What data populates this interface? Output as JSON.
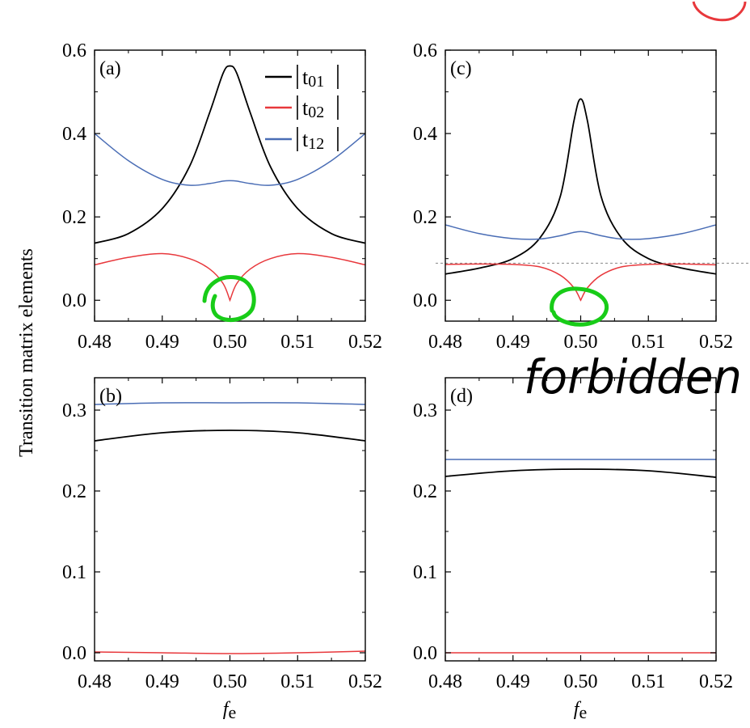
{
  "figure": {
    "ylabel": "Transition matrix elements",
    "xlabel_main": "f",
    "xlabel_sub": "e"
  },
  "legend": [
    {
      "label": "|t01|",
      "main": "t",
      "sub": "01",
      "color": "#000000"
    },
    {
      "label": "|t02|",
      "main": "t",
      "sub": "02",
      "color": "#e8383c"
    },
    {
      "label": "|t12|",
      "main": "t",
      "sub": "12",
      "color": "#4a6db5"
    }
  ],
  "annotations": {
    "handwritten_text": "forbidden",
    "pen_color": "#18cc18",
    "red_circle_color": "#e8383c"
  },
  "chart_data": [
    {
      "type": "line",
      "panel_label": "(a)",
      "xlim": [
        0.48,
        0.52
      ],
      "ylim": [
        -0.05,
        0.6
      ],
      "xticks": [
        "0.48",
        "0.49",
        "0.50",
        "0.51",
        "0.52"
      ],
      "yticks": [
        "0.0",
        "0.2",
        "0.4",
        "0.6"
      ],
      "x": [
        0.48,
        0.485,
        0.49,
        0.494,
        0.497,
        0.499,
        0.5,
        0.501,
        0.503,
        0.506,
        0.51,
        0.515,
        0.52
      ],
      "series": [
        {
          "name": "|t01|",
          "values": [
            0.137,
            0.16,
            0.22,
            0.32,
            0.45,
            0.545,
            0.562,
            0.545,
            0.45,
            0.32,
            0.22,
            0.16,
            0.137
          ]
        },
        {
          "name": "|t02|",
          "values": [
            0.085,
            0.103,
            0.112,
            0.1,
            0.075,
            0.04,
            0.0,
            0.04,
            0.075,
            0.1,
            0.112,
            0.103,
            0.085
          ]
        },
        {
          "name": "|t12|",
          "values": [
            0.4,
            0.335,
            0.29,
            0.276,
            0.28,
            0.286,
            0.287,
            0.286,
            0.28,
            0.276,
            0.29,
            0.335,
            0.4
          ]
        }
      ]
    },
    {
      "type": "line",
      "panel_label": "(b)",
      "xlim": [
        0.48,
        0.52
      ],
      "ylim": [
        -0.01,
        0.34
      ],
      "xticks": [
        "0.48",
        "0.49",
        "0.50",
        "0.51",
        "0.52"
      ],
      "yticks": [
        "0.0",
        "0.1",
        "0.2",
        "0.3"
      ],
      "x": [
        0.48,
        0.49,
        0.5,
        0.51,
        0.52
      ],
      "series": [
        {
          "name": "|t01|",
          "values": [
            0.262,
            0.272,
            0.275,
            0.272,
            0.262
          ]
        },
        {
          "name": "|t02|",
          "values": [
            0.001,
            0.0,
            -0.001,
            0.0,
            0.002
          ]
        },
        {
          "name": "|t12|",
          "values": [
            0.307,
            0.309,
            0.309,
            0.309,
            0.307
          ]
        }
      ]
    },
    {
      "type": "line",
      "panel_label": "(c)",
      "xlim": [
        0.48,
        0.52
      ],
      "ylim": [
        -0.05,
        0.6
      ],
      "xticks": [
        "0.48",
        "0.49",
        "0.50",
        "0.51",
        "0.52"
      ],
      "yticks": [
        "0.0",
        "0.2",
        "0.4",
        "0.6"
      ],
      "reference_line_y": 0.089,
      "x": [
        0.48,
        0.485,
        0.49,
        0.494,
        0.497,
        0.499,
        0.5,
        0.501,
        0.503,
        0.506,
        0.51,
        0.515,
        0.52
      ],
      "series": [
        {
          "name": "|t01|",
          "values": [
            0.063,
            0.077,
            0.1,
            0.15,
            0.25,
            0.43,
            0.483,
            0.43,
            0.25,
            0.15,
            0.1,
            0.077,
            0.063
          ]
        },
        {
          "name": "|t02|",
          "values": [
            0.086,
            0.087,
            0.086,
            0.08,
            0.06,
            0.03,
            0.0,
            0.03,
            0.06,
            0.08,
            0.086,
            0.087,
            0.085
          ]
        },
        {
          "name": "|t12|",
          "values": [
            0.181,
            0.16,
            0.148,
            0.147,
            0.155,
            0.163,
            0.165,
            0.163,
            0.155,
            0.147,
            0.148,
            0.16,
            0.181
          ]
        }
      ]
    },
    {
      "type": "line",
      "panel_label": "(d)",
      "xlim": [
        0.48,
        0.52
      ],
      "ylim": [
        -0.01,
        0.34
      ],
      "xticks": [
        "0.48",
        "0.49",
        "0.50",
        "0.51",
        "0.52"
      ],
      "yticks": [
        "0.0",
        "0.1",
        "0.2",
        "0.3"
      ],
      "x": [
        0.48,
        0.49,
        0.5,
        0.51,
        0.52
      ],
      "series": [
        {
          "name": "|t01|",
          "values": [
            0.218,
            0.225,
            0.227,
            0.225,
            0.217
          ]
        },
        {
          "name": "|t02|",
          "values": [
            0.0,
            0.0,
            0.0,
            0.0,
            0.0
          ]
        },
        {
          "name": "|t12|",
          "values": [
            0.239,
            0.239,
            0.239,
            0.239,
            0.239
          ]
        }
      ]
    }
  ]
}
